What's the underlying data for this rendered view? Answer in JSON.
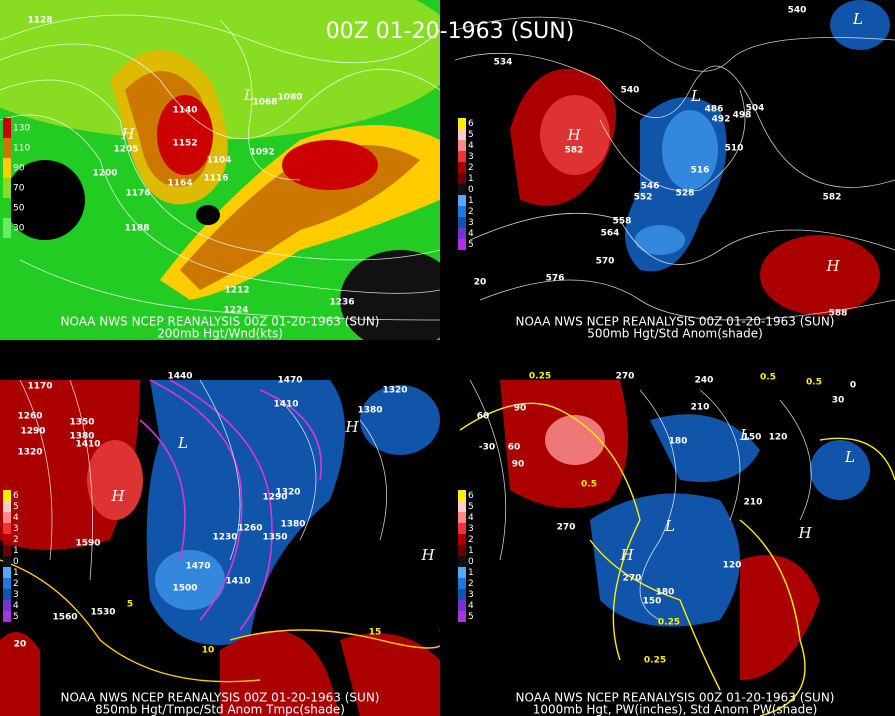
{
  "title": "00Z 01-20-1963 (SUN)",
  "panels": [
    {
      "source": "NOAA NWS NCEP REANALYSIS 00Z 01-20-1963 (SUN)",
      "caption": "200mb Hgt/Wnd(kts)",
      "scale": [
        130,
        110,
        90,
        70,
        50,
        30
      ],
      "labels": [
        "1128",
        "1140",
        "1152",
        "1164",
        "1176",
        "1188",
        "1200",
        "1212",
        "1224",
        "1236",
        "1080",
        "1092",
        "1104",
        "1068",
        "1116",
        "H",
        "1205",
        "L"
      ]
    },
    {
      "source": "NOAA NWS NCEP REANALYSIS 00Z 01-20-1963 (SUN)",
      "caption": "500mb Hgt/Std Anom(shade)",
      "scale": [
        6,
        5,
        4,
        3,
        2,
        1,
        0,
        1,
        2,
        3,
        4,
        5
      ],
      "labels": [
        "534",
        "540",
        "546",
        "552",
        "558",
        "564",
        "570",
        "576",
        "582",
        "588",
        "504",
        "510",
        "516",
        "528",
        "486",
        "492",
        "498",
        "20",
        "H",
        "582",
        "L",
        "H",
        "L",
        "540"
      ]
    },
    {
      "source": "NOAA NWS NCEP REANALYSIS 00Z 01-20-1963 (SUN)",
      "caption": "850mb Hgt/Tmpc/Std Anom Tmpc(shade)",
      "scale": [
        6,
        5,
        4,
        3,
        2,
        1,
        0,
        1,
        2,
        3,
        4,
        5
      ],
      "labels": [
        "1170",
        "1260",
        "1290",
        "1320",
        "1350",
        "1380",
        "1410",
        "1440",
        "1470",
        "1410",
        "1380",
        "1320",
        "1290",
        "1320",
        "1350",
        "1380",
        "1230",
        "1260",
        "1470",
        "1500",
        "1410",
        "1590",
        "1530",
        "1560",
        "5",
        "10",
        "15",
        "20",
        "H",
        "L",
        "H",
        "H"
      ]
    },
    {
      "source": "NOAA NWS NCEP REANALYSIS 00Z 01-20-1963 (SUN)",
      "caption": "1000mb Hgt, PW(inches), Std Anom PW(shade)",
      "scale": [
        6,
        5,
        4,
        3,
        2,
        1,
        0,
        1,
        2,
        3,
        4,
        5
      ],
      "labels": [
        "0.25",
        "270",
        "240",
        "0.5",
        "0.5",
        "0",
        "60",
        "-30",
        "60",
        "90",
        "210",
        "180",
        "120",
        "150",
        "210",
        "270",
        "270",
        "150",
        "180",
        "120",
        "0.25",
        "0.25",
        "0.5",
        "30",
        "90",
        "H",
        "L",
        "H",
        "L",
        "L"
      ]
    }
  ]
}
